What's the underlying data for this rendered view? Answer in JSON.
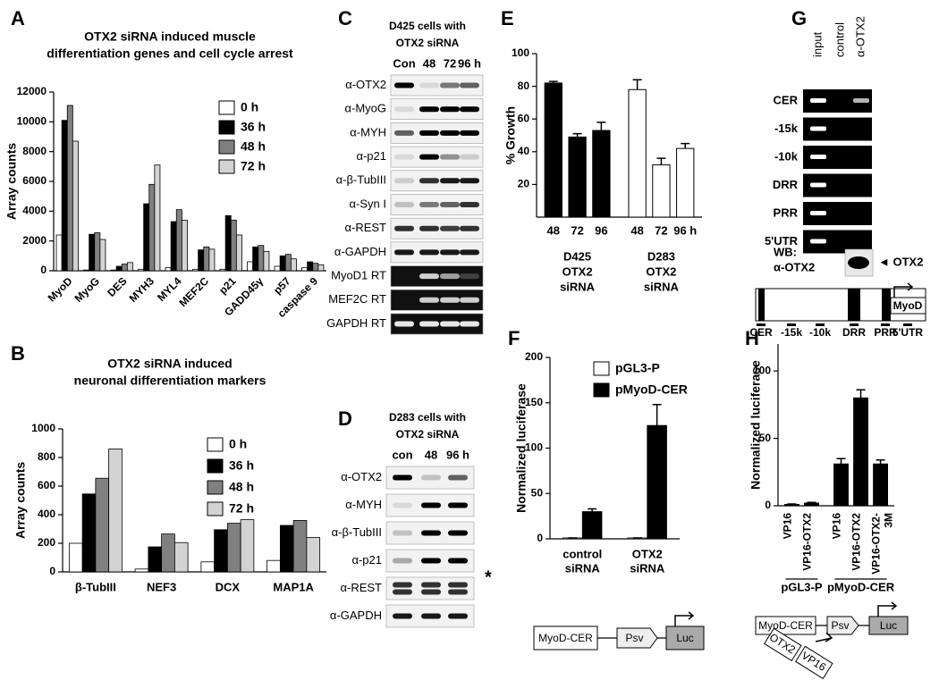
{
  "chart_data": [
    {
      "panel": "A",
      "type": "bar",
      "title": [
        "OTX2 siRNA induced muscle",
        "differentiation genes and cell cycle arrest"
      ],
      "ylabel": "Array counts",
      "categories": [
        "MyoD",
        "MyoG",
        "DES",
        "MYH3",
        "MYL4",
        "MEF2C",
        "p21",
        "GADD45γ",
        "p57",
        "caspase 9"
      ],
      "series": [
        {
          "name": "0 h",
          "color": "#ffffff",
          "values": [
            2400,
            50,
            50,
            100,
            200,
            100,
            100,
            600,
            300,
            200
          ]
        },
        {
          "name": "36 h",
          "color": "#000000",
          "values": [
            10100,
            2450,
            300,
            4500,
            3300,
            1400,
            3700,
            1600,
            1000,
            600
          ]
        },
        {
          "name": "48 h",
          "color": "#808080",
          "values": [
            11100,
            2550,
            450,
            5800,
            4100,
            1600,
            3400,
            1700,
            1100,
            500
          ]
        },
        {
          "name": "72 h",
          "color": "#d3d3d3",
          "values": [
            8700,
            2100,
            550,
            7100,
            3400,
            1450,
            2400,
            1300,
            800,
            400
          ]
        }
      ],
      "ylim": [
        0,
        12000
      ],
      "yticks": [
        0,
        2000,
        4000,
        6000,
        8000,
        10000,
        12000
      ],
      "legend": "upper-right"
    },
    {
      "panel": "B",
      "type": "bar",
      "title": [
        "OTX2 siRNA induced",
        "neuronal differentiation markers"
      ],
      "ylabel": "Array counts",
      "categories": [
        "β-TubIII",
        "NEF3",
        "DCX",
        "MAP1A"
      ],
      "series": [
        {
          "name": "0 h",
          "color": "#ffffff",
          "values": [
            200,
            20,
            70,
            80
          ]
        },
        {
          "name": "36 h",
          "color": "#000000",
          "values": [
            545,
            175,
            295,
            325
          ]
        },
        {
          "name": "48 h",
          "color": "#808080",
          "values": [
            655,
            265,
            340,
            360
          ]
        },
        {
          "name": "72 h",
          "color": "#d3d3d3",
          "values": [
            860,
            205,
            365,
            240
          ]
        }
      ],
      "ylim": [
        0,
        1000
      ],
      "yticks": [
        0,
        200,
        400,
        600,
        800,
        1000
      ],
      "legend": "upper-right"
    },
    {
      "panel": "E",
      "type": "group-bar",
      "ylabel": "% Growth",
      "groups": [
        {
          "label": [
            "D425",
            "OTX2",
            "siRNA"
          ],
          "color": "#000000",
          "categories": [
            "48",
            "72",
            "96"
          ],
          "values": [
            82,
            49,
            53
          ],
          "errors": [
            1,
            2,
            5
          ]
        },
        {
          "label": [
            "D283",
            "OTX2",
            "siRNA"
          ],
          "color": "#ffffff",
          "categories": [
            "48",
            "72",
            "96 h"
          ],
          "values": [
            78,
            32,
            42
          ],
          "errors": [
            6,
            4,
            3
          ]
        }
      ],
      "ylim": [
        0,
        100
      ],
      "yticks": [
        20,
        40,
        60,
        80,
        100
      ]
    },
    {
      "panel": "F",
      "type": "bar",
      "ylabel": "Normalized  luciferase",
      "categories": [
        [
          "control",
          "siRNA"
        ],
        [
          "OTX2",
          "siRNA"
        ]
      ],
      "series": [
        {
          "name": "pGL3-P",
          "color": "#ffffff",
          "values": [
            1,
            1
          ],
          "errors": [
            0,
            0
          ]
        },
        {
          "name": "pMyoD-CER",
          "color": "#000000",
          "values": [
            30,
            125
          ],
          "errors": [
            3,
            23
          ]
        }
      ],
      "ylim": [
        0,
        200
      ],
      "yticks": [
        0,
        50,
        100,
        150,
        200
      ],
      "legend": "upper-right",
      "construct": [
        "MyoD-CER",
        "Psv",
        "Luc"
      ]
    },
    {
      "panel": "H",
      "type": "group-bar",
      "ylabel": "Normalized  luciferase",
      "groups": [
        {
          "label": [
            "pGL3-P"
          ],
          "color": "#000000",
          "categories": [
            [
              "VP16"
            ],
            [
              "VP16-OTX2"
            ]
          ],
          "values": [
            1,
            2
          ],
          "errors": [
            0.3,
            0.5
          ]
        },
        {
          "label": [
            "pMyoD-CER"
          ],
          "color": "#000000",
          "categories": [
            [
              "VP16"
            ],
            [
              "VP16-OTX2"
            ],
            [
              "VP16-OTX2-",
              "3M"
            ]
          ],
          "values": [
            31,
            80,
            31
          ],
          "errors": [
            4,
            6,
            3
          ]
        }
      ],
      "ylim": [
        0,
        120
      ],
      "yticks": [
        0,
        50,
        100
      ],
      "construct": [
        "MyoD-CER",
        "Psv",
        "Luc",
        "OTX2",
        "VP16"
      ]
    }
  ],
  "blot_c": {
    "panel": "C",
    "title": [
      "D425 cells with",
      "OTX2 siRNA"
    ],
    "lanes": [
      "Con",
      "48",
      "72",
      "96 h"
    ],
    "rows": [
      "α-OTX2",
      "α-MyoG",
      "α-MYH",
      "α-p21",
      "α-β-TubIII",
      "α-Syn I",
      "α-REST",
      "α-GAPDH",
      "MyoD1 RT",
      "MEF2C RT",
      "GAPDH RT"
    ]
  },
  "blot_d": {
    "panel": "D",
    "title": [
      "D283 cells with",
      "OTX2 siRNA"
    ],
    "lanes": [
      "con",
      "48",
      "96 h"
    ],
    "rows": [
      "α-OTX2",
      "α-MYH",
      "α-β-TubIII",
      "α-p21",
      "α-REST",
      "α-GAPDH"
    ],
    "marker": "*"
  },
  "chip_g": {
    "panel": "G",
    "lanes": [
      "input",
      "control",
      "α-OTX2"
    ],
    "rows": [
      "CER",
      "-15k",
      "-10k",
      "DRR",
      "PRR",
      "5'UTR"
    ],
    "wb": [
      "WB:",
      "α-OTX2"
    ],
    "wb_band": "◄ OTX2",
    "gene": "MyoD",
    "map": [
      "CER",
      "-15k",
      "-10k",
      "DRR",
      "PRR",
      "5'UTR"
    ]
  }
}
